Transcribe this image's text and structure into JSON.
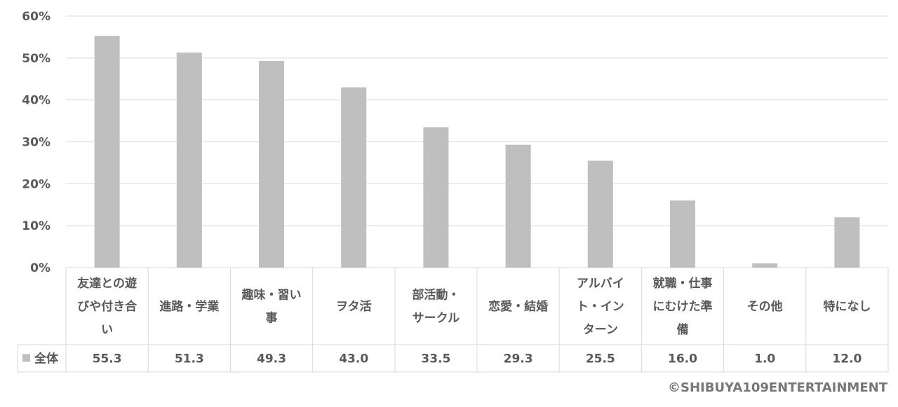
{
  "chart_data": {
    "type": "bar",
    "categories": [
      [
        "友達との遊",
        "びや付き合",
        "い"
      ],
      [
        "進路・学業"
      ],
      [
        "趣味・習い",
        "事"
      ],
      [
        "ヲタ活"
      ],
      [
        "部活動・",
        "サークル"
      ],
      [
        "恋愛・結婚"
      ],
      [
        "アルバイ",
        "ト・イン",
        "ターン"
      ],
      [
        "就職・仕事",
        "にむけた準",
        "備"
      ],
      [
        "その他"
      ],
      [
        "特になし"
      ]
    ],
    "series": [
      {
        "name": "全体",
        "values": [
          55.3,
          51.3,
          49.3,
          43.0,
          33.5,
          29.3,
          25.5,
          16.0,
          1.0,
          12.0
        ],
        "labels": [
          "55.3",
          "51.3",
          "49.3",
          "43.0",
          "33.5",
          "29.3",
          "25.5",
          "16.0",
          "1.0",
          "12.0"
        ],
        "color": "#bfbfbf"
      }
    ],
    "y_ticks": [
      "0%",
      "10%",
      "20%",
      "30%",
      "40%",
      "50%",
      "60%"
    ],
    "ylim": [
      0,
      60
    ],
    "grid": true,
    "data_table": true
  },
  "colors": {
    "bar": "#bfbfbf",
    "grid": "#d9d9d9",
    "text": "#595959"
  },
  "copyright": "©SHIBUYA109ENTERTAINMENT"
}
